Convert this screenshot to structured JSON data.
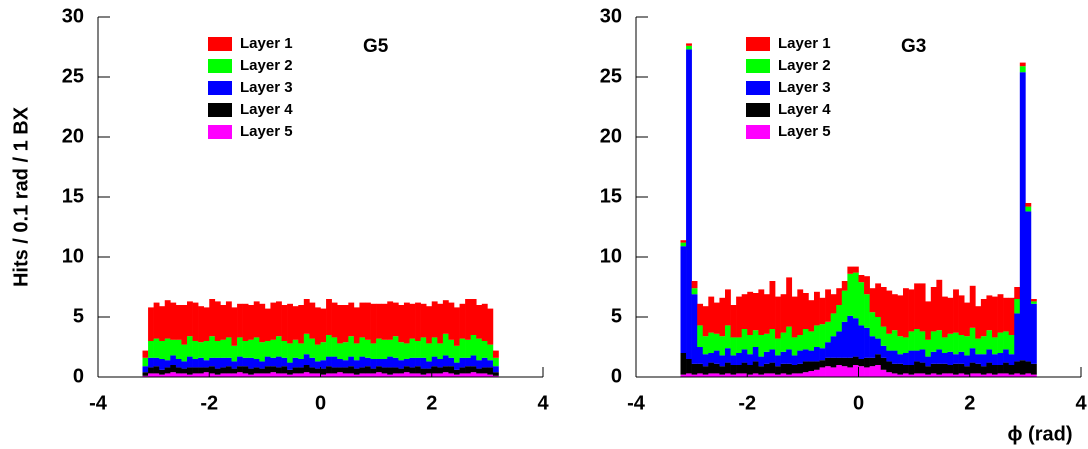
{
  "chart_data": [
    {
      "type": "histogram",
      "title": "G5",
      "y_label": "Hits / 0.1 rad / 1 BX",
      "stacked": true,
      "xlim": [
        -4,
        4
      ],
      "ylim": [
        0,
        30
      ],
      "xticks": [
        -4,
        -2,
        0,
        2,
        4
      ],
      "yticks": [
        0,
        5,
        10,
        15,
        20,
        25,
        30
      ],
      "bins": [
        -3.2,
        -3.1,
        -3.0,
        -2.9,
        -2.8,
        -2.7,
        -2.6,
        -2.5,
        -2.4,
        -2.3,
        -2.2,
        -2.1,
        -2.0,
        -1.9,
        -1.8,
        -1.7,
        -1.6,
        -1.5,
        -1.4,
        -1.3,
        -1.2,
        -1.1,
        -1.0,
        -0.9,
        -0.8,
        -0.7,
        -0.6,
        -0.5,
        -0.4,
        -0.3,
        -0.2,
        -0.1,
        0,
        0.1,
        0.2,
        0.3,
        0.4,
        0.5,
        0.6,
        0.7,
        0.8,
        0.9,
        1.0,
        1.1,
        1.2,
        1.3,
        1.4,
        1.5,
        1.6,
        1.7,
        1.8,
        1.9,
        2.0,
        2.1,
        2.2,
        2.3,
        2.4,
        2.5,
        2.6,
        2.7,
        2.8,
        2.9,
        3.0,
        3.1,
        3.2
      ],
      "series": [
        {
          "name": "Layer 1",
          "color": "#ff0000",
          "values": [
            0.6,
            2.8,
            3.0,
            2.9,
            3.2,
            3.1,
            2.9,
            3.3,
            2.9,
            3.2,
            3.0,
            2.8,
            3.1,
            3.3,
            2.9,
            3.0,
            3.2,
            2.8,
            3.1,
            2.9,
            3.0,
            3.2,
            2.7,
            3.1,
            2.9,
            3.0,
            3.3,
            2.8,
            3.2,
            2.9,
            3.0,
            3.1,
            2.8,
            3.0,
            2.9,
            3.2,
            3.1,
            2.8,
            3.0,
            2.9,
            3.1,
            3.3,
            2.9,
            3.0,
            3.2,
            2.8,
            3.1,
            3.4,
            2.9,
            3.2,
            2.8,
            3.1,
            3.0,
            3.3,
            2.8,
            3.1,
            3.2,
            2.9,
            3.4,
            3.0,
            2.8,
            3.1,
            3.0,
            0.6
          ]
        },
        {
          "name": "Layer 2",
          "color": "#00ff00",
          "values": [
            0.7,
            1.4,
            1.6,
            1.5,
            1.8,
            1.3,
            1.6,
            1.4,
            1.7,
            1.5,
            1.3,
            1.6,
            1.8,
            1.4,
            1.5,
            1.7,
            1.3,
            1.6,
            1.4,
            1.5,
            1.8,
            1.6,
            1.3,
            1.5,
            1.7,
            1.4,
            1.6,
            1.5,
            1.3,
            1.7,
            1.6,
            1.4,
            1.5,
            1.8,
            1.6,
            1.3,
            1.5,
            1.7,
            1.4,
            1.6,
            1.5,
            1.3,
            1.7,
            1.6,
            1.4,
            1.8,
            1.5,
            1.3,
            1.6,
            1.4,
            1.7,
            1.5,
            1.6,
            1.3,
            1.8,
            1.5,
            1.4,
            1.6,
            1.5,
            1.7,
            1.8,
            1.4,
            1.3,
            0.7
          ]
        },
        {
          "name": "Layer 3",
          "color": "#0000ff",
          "values": [
            0.5,
            0.8,
            0.7,
            0.9,
            0.6,
            0.8,
            0.7,
            0.6,
            0.9,
            0.7,
            0.8,
            0.6,
            0.7,
            0.9,
            0.8,
            0.7,
            0.6,
            0.8,
            0.7,
            0.9,
            0.7,
            0.6,
            0.8,
            0.7,
            0.9,
            0.7,
            0.6,
            0.8,
            0.7,
            0.9,
            0.8,
            0.6,
            0.7,
            0.8,
            0.9,
            0.7,
            0.6,
            0.8,
            0.7,
            0.9,
            0.7,
            0.8,
            0.6,
            0.7,
            0.9,
            0.8,
            0.7,
            0.6,
            0.8,
            0.7,
            0.9,
            0.6,
            0.8,
            0.7,
            0.9,
            0.7,
            0.6,
            0.8,
            0.7,
            0.9,
            0.7,
            0.8,
            0.6,
            0.5
          ]
        },
        {
          "name": "Layer 4",
          "color": "#000000",
          "values": [
            0.3,
            0.5,
            0.6,
            0.4,
            0.5,
            0.6,
            0.5,
            0.4,
            0.6,
            0.5,
            0.5,
            0.4,
            0.6,
            0.5,
            0.5,
            0.6,
            0.4,
            0.5,
            0.6,
            0.5,
            0.5,
            0.4,
            0.6,
            0.5,
            0.5,
            0.6,
            0.4,
            0.5,
            0.5,
            0.6,
            0.5,
            0.4,
            0.5,
            0.6,
            0.5,
            0.4,
            0.5,
            0.6,
            0.5,
            0.5,
            0.6,
            0.4,
            0.5,
            0.5,
            0.6,
            0.5,
            0.4,
            0.5,
            0.5,
            0.6,
            0.5,
            0.4,
            0.6,
            0.5,
            0.5,
            0.6,
            0.4,
            0.5,
            0.6,
            0.5,
            0.4,
            0.5,
            0.6,
            0.3
          ]
        },
        {
          "name": "Layer 5",
          "color": "#ff00ff",
          "values": [
            0.1,
            0.3,
            0.3,
            0.2,
            0.3,
            0.4,
            0.3,
            0.3,
            0.2,
            0.3,
            0.3,
            0.4,
            0.3,
            0.2,
            0.3,
            0.3,
            0.3,
            0.4,
            0.3,
            0.2,
            0.3,
            0.3,
            0.3,
            0.4,
            0.3,
            0.3,
            0.2,
            0.3,
            0.3,
            0.4,
            0.3,
            0.3,
            0.2,
            0.3,
            0.3,
            0.4,
            0.3,
            0.3,
            0.2,
            0.3,
            0.3,
            0.3,
            0.4,
            0.3,
            0.2,
            0.3,
            0.3,
            0.4,
            0.3,
            0.3,
            0.2,
            0.3,
            0.3,
            0.3,
            0.4,
            0.3,
            0.2,
            0.3,
            0.3,
            0.4,
            0.3,
            0.3,
            0.2,
            0.1
          ]
        }
      ]
    },
    {
      "type": "histogram",
      "title": "G3",
      "x_label": "ϕ (rad)",
      "stacked": true,
      "xlim": [
        -4,
        4
      ],
      "ylim": [
        0,
        30
      ],
      "xticks": [
        -4,
        -2,
        0,
        2,
        4
      ],
      "yticks": [
        0,
        5,
        10,
        15,
        20,
        25,
        30
      ],
      "bins": [
        -3.2,
        -3.1,
        -3.0,
        -2.9,
        -2.8,
        -2.7,
        -2.6,
        -2.5,
        -2.4,
        -2.3,
        -2.2,
        -2.1,
        -2.0,
        -1.9,
        -1.8,
        -1.7,
        -1.6,
        -1.5,
        -1.4,
        -1.3,
        -1.2,
        -1.1,
        -1.0,
        -0.9,
        -0.8,
        -0.7,
        -0.6,
        -0.5,
        -0.4,
        -0.3,
        -0.2,
        -0.1,
        0,
        0.1,
        0.2,
        0.3,
        0.4,
        0.5,
        0.6,
        0.7,
        0.8,
        0.9,
        1.0,
        1.1,
        1.2,
        1.3,
        1.4,
        1.5,
        1.6,
        1.7,
        1.8,
        1.9,
        2.0,
        2.1,
        2.2,
        2.3,
        2.4,
        2.5,
        2.6,
        2.7,
        2.8,
        2.9,
        3.0,
        3.1,
        3.2
      ],
      "series": [
        {
          "name": "Layer 1",
          "color": "#ff0000",
          "values": [
            0.2,
            0.2,
            0.6,
            1.8,
            2.5,
            3.0,
            2.6,
            3.2,
            3.0,
            2.7,
            3.4,
            2.9,
            3.6,
            3.1,
            3.8,
            3.3,
            4.0,
            3.5,
            3.2,
            4.1,
            3.4,
            3.8,
            3.0,
            2.6,
            2.8,
            2.2,
            2.7,
            1.6,
            1.4,
            0.8,
            0.6,
            0.5,
            0.6,
            1.5,
            2.0,
            2.8,
            3.3,
            3.6,
            3.0,
            3.4,
            4.1,
            3.5,
            3.8,
            4.0,
            3.2,
            3.7,
            4.2,
            3.4,
            3.0,
            3.6,
            3.3,
            2.8,
            3.5,
            2.7,
            3.1,
            2.9,
            3.4,
            3.2,
            2.8,
            3.1,
            1.0,
            0.3,
            0.3,
            0.2
          ]
        },
        {
          "name": "Layer 2",
          "color": "#00ff00",
          "values": [
            0.3,
            0.3,
            0.5,
            1.8,
            1.5,
            1.7,
            1.4,
            1.6,
            1.9,
            1.5,
            1.3,
            1.7,
            1.6,
            1.4,
            1.8,
            1.5,
            1.7,
            1.4,
            1.6,
            1.9,
            1.5,
            1.3,
            1.7,
            1.6,
            1.8,
            2.0,
            1.7,
            1.9,
            2.2,
            2.6,
            3.5,
            3.8,
            3.6,
            2.8,
            2.0,
            1.8,
            1.6,
            1.4,
            1.7,
            1.5,
            1.3,
            1.6,
            1.8,
            1.5,
            1.4,
            1.7,
            1.6,
            1.3,
            1.5,
            1.8,
            1.4,
            1.6,
            1.7,
            1.3,
            1.5,
            1.6,
            1.4,
            1.7,
            1.5,
            1.6,
            1.2,
            0.5,
            0.4,
            0.2
          ]
        },
        {
          "name": "Layer 3",
          "color": "#0000ff",
          "values": [
            8.9,
            25.8,
            5.8,
            1.4,
            1.0,
            0.8,
            1.1,
            0.9,
            1.2,
            0.8,
            1.0,
            1.1,
            0.9,
            1.2,
            0.8,
            1.0,
            1.1,
            0.9,
            1.0,
            1.2,
            0.8,
            1.1,
            1.0,
            0.9,
            1.2,
            1.0,
            1.3,
            1.8,
            2.2,
            3.0,
            3.5,
            3.2,
            2.8,
            2.5,
            1.8,
            1.3,
            1.0,
            0.9,
            1.1,
            0.8,
            1.0,
            1.2,
            0.9,
            1.1,
            0.8,
            1.0,
            1.2,
            0.9,
            1.1,
            0.8,
            1.0,
            0.9,
            1.2,
            0.8,
            1.0,
            1.1,
            0.9,
            1.0,
            1.1,
            0.9,
            4.0,
            24.0,
            12.5,
            5.0
          ]
        },
        {
          "name": "Layer 4",
          "color": "#000000",
          "values": [
            1.8,
            1.2,
            0.9,
            0.8,
            0.7,
            0.9,
            0.8,
            0.7,
            0.9,
            0.8,
            0.7,
            0.9,
            0.8,
            1.0,
            0.7,
            0.8,
            0.9,
            0.7,
            0.8,
            0.9,
            0.7,
            0.8,
            0.9,
            0.8,
            0.7,
            0.6,
            0.7,
            0.8,
            0.6,
            0.7,
            0.8,
            0.7,
            0.6,
            0.8,
            0.7,
            0.9,
            1.0,
            0.9,
            0.8,
            0.9,
            0.7,
            0.8,
            1.0,
            0.9,
            0.7,
            0.8,
            0.9,
            0.8,
            0.7,
            0.9,
            0.8,
            0.7,
            0.9,
            0.8,
            0.7,
            0.9,
            0.8,
            0.7,
            0.9,
            0.8,
            1.0,
            1.2,
            1.0,
            0.9
          ]
        },
        {
          "name": "Layer 5",
          "color": "#ff00ff",
          "values": [
            0.2,
            0.3,
            0.2,
            0.3,
            0.2,
            0.3,
            0.3,
            0.2,
            0.3,
            0.2,
            0.3,
            0.3,
            0.2,
            0.3,
            0.2,
            0.3,
            0.3,
            0.2,
            0.3,
            0.2,
            0.3,
            0.3,
            0.4,
            0.5,
            0.6,
            0.8,
            0.9,
            0.8,
            1.0,
            0.9,
            0.8,
            1.0,
            0.9,
            0.8,
            0.9,
            1.0,
            0.6,
            0.4,
            0.3,
            0.2,
            0.3,
            0.2,
            0.3,
            0.3,
            0.2,
            0.3,
            0.2,
            0.3,
            0.3,
            0.2,
            0.3,
            0.2,
            0.3,
            0.3,
            0.2,
            0.3,
            0.2,
            0.3,
            0.3,
            0.2,
            0.3,
            0.2,
            0.3,
            0.2
          ]
        }
      ]
    }
  ]
}
